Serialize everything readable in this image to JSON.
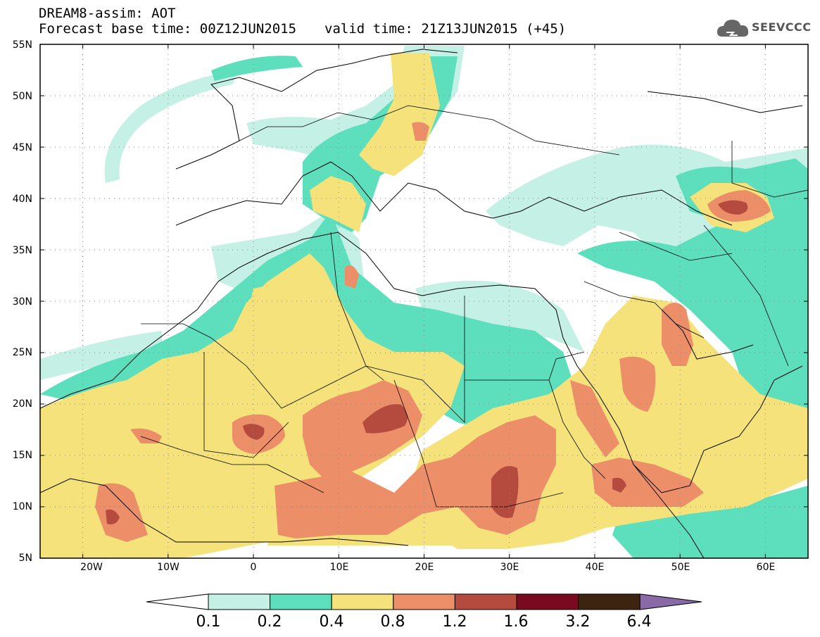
{
  "title_line1": "DREAM8-assim: AOT",
  "title_base": "Forecast base time: 00Z12JUN2015",
  "title_valid": "valid time: 21Z13JUN2015 (+45)",
  "logo_text": "SEEVCCC",
  "lat_labels": [
    "55N",
    "50N",
    "45N",
    "40N",
    "35N",
    "30N",
    "25N",
    "20N",
    "15N",
    "10N",
    "5N"
  ],
  "lon_labels": [
    "20W",
    "10W",
    "0",
    "10E",
    "20E",
    "30E",
    "40E",
    "50E",
    "60E"
  ],
  "colorbar": {
    "labels": [
      "0.1",
      "0.2",
      "0.4",
      "0.8",
      "1.2",
      "1.6",
      "3.2",
      "6.4"
    ],
    "colors": [
      "#ffffff",
      "#c4f0e6",
      "#5ddfbd",
      "#f5e27a",
      "#ec8f69",
      "#b54b3f",
      "#7a0a1f",
      "#3c2411",
      "#8a6aa6"
    ]
  },
  "map": {
    "lon_range": [
      -25,
      65
    ],
    "lat_range": [
      5,
      55
    ],
    "contour_levels": [
      0.1,
      0.2,
      0.4,
      0.8,
      1.2,
      1.6,
      3.2,
      6.4
    ],
    "colors": {
      "aot_0_1": "#c4f0e6",
      "aot_0_2": "#5ddfbd",
      "aot_0_4": "#f5e27a",
      "aot_0_8": "#ec8f69",
      "aot_1_2": "#b54b3f",
      "gridline": "#888888",
      "border": "#000000"
    }
  }
}
